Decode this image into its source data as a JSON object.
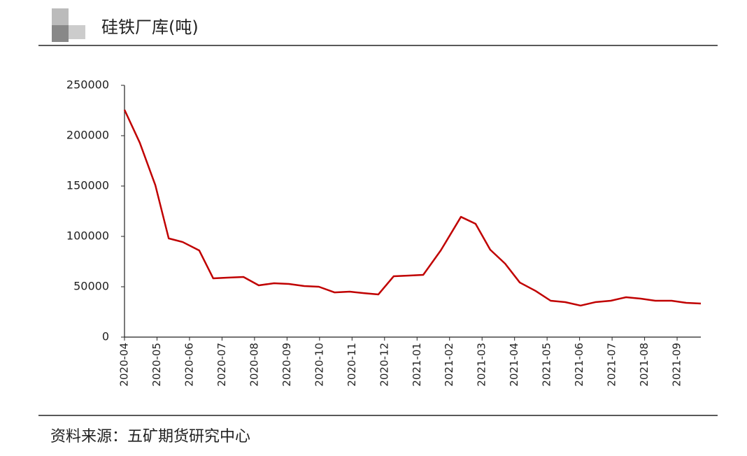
{
  "chart_data": {
    "type": "line",
    "title": "硅铁厂库(吨)",
    "source": "资料来源：五矿期货研究中心",
    "series": [
      {
        "name": "硅铁厂库",
        "color": "#c00000",
        "x": [
          0,
          0.47,
          0.95,
          1.36,
          1.79,
          2.3,
          2.73,
          3.16,
          3.66,
          4.13,
          4.6,
          5.06,
          5.53,
          5.98,
          6.46,
          6.93,
          7.36,
          7.81,
          8.28,
          8.76,
          9.19,
          9.73,
          10.35,
          10.8,
          11.25,
          11.71,
          12.16,
          12.65,
          13.11,
          13.56,
          14.03,
          14.48,
          14.96,
          15.43,
          15.88,
          16.33,
          16.83,
          17.28,
          17.73
        ],
        "values": [
          225700,
          193000,
          150700,
          98000,
          94400,
          86000,
          58300,
          59000,
          59700,
          51400,
          53500,
          52800,
          50700,
          50000,
          44400,
          45100,
          43700,
          42400,
          60400,
          61100,
          61800,
          86100,
          119400,
          112500,
          86800,
          72900,
          54200,
          45800,
          36100,
          34700,
          31300,
          34700,
          36100,
          39600,
          38200,
          36100,
          36100,
          34000,
          33300
        ]
      }
    ],
    "xlim": [
      0,
      17.73
    ],
    "xticks": [
      {
        "value": 0,
        "label": "2020-04"
      },
      {
        "value": 1,
        "label": "2020-05"
      },
      {
        "value": 2,
        "label": "2020-06"
      },
      {
        "value": 3,
        "label": "2020-07"
      },
      {
        "value": 4,
        "label": "2020-08"
      },
      {
        "value": 5,
        "label": "2020-09"
      },
      {
        "value": 6,
        "label": "2020-10"
      },
      {
        "value": 7,
        "label": "2020-11"
      },
      {
        "value": 8,
        "label": "2020-12"
      },
      {
        "value": 9,
        "label": "2021-01"
      },
      {
        "value": 10,
        "label": "2021-02"
      },
      {
        "value": 11,
        "label": "2021-03"
      },
      {
        "value": 12,
        "label": "2021-04"
      },
      {
        "value": 13,
        "label": "2021-05"
      },
      {
        "value": 14,
        "label": "2021-06"
      },
      {
        "value": 15,
        "label": "2021-07"
      },
      {
        "value": 16,
        "label": "2021-08"
      },
      {
        "value": 17,
        "label": "2021-09"
      }
    ],
    "ylim": [
      0,
      250000
    ],
    "yticks": [
      0,
      50000,
      100000,
      150000,
      200000,
      250000
    ]
  }
}
